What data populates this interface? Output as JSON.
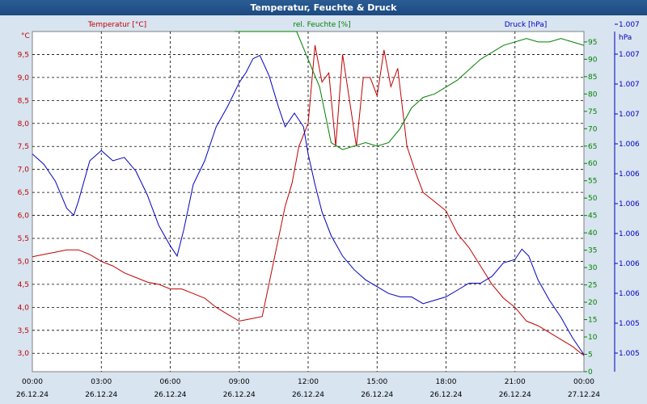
{
  "window": {
    "title": "Temperatur, Feuchte & Druck"
  },
  "colors": {
    "temperature": "#c00000",
    "humidity": "#008000",
    "pressure": "#0000c0",
    "grid": "#000000",
    "plot_bg": "#ffffff"
  },
  "chart_data": {
    "type": "line",
    "title": "Temperatur, Feuchte & Druck",
    "x_tick_labels": [
      {
        "time": "00:00",
        "date": "26.12.24"
      },
      {
        "time": "03:00",
        "date": "26.12.24"
      },
      {
        "time": "06:00",
        "date": "26.12.24"
      },
      {
        "time": "09:00",
        "date": "26.12.24"
      },
      {
        "time": "12:00",
        "date": "26.12.24"
      },
      {
        "time": "15:00",
        "date": "26.12.24"
      },
      {
        "time": "18:00",
        "date": "26.12.24"
      },
      {
        "time": "21:00",
        "date": "26.12.24"
      },
      {
        "time": "00:00",
        "date": "27.12.24"
      }
    ],
    "x_unit_hours": [
      0,
      24
    ],
    "axes": {
      "temperature": {
        "label": "Temperatur [°C]",
        "unit": "°C",
        "range": [
          2.6,
          10.0
        ],
        "tick_labels": [
          "3,0",
          "3,5",
          "4,0",
          "4,5",
          "5,0",
          "5,5",
          "6,0",
          "6,5",
          "7,0",
          "7,5",
          "8,0",
          "8,5",
          "9,0",
          "9,5"
        ]
      },
      "humidity": {
        "label": "rel. Feuchte [%]",
        "unit": "%",
        "range": [
          0,
          98
        ],
        "tick_labels": [
          "0",
          "5",
          "10",
          "15",
          "20",
          "25",
          "30",
          "35",
          "40",
          "45",
          "50",
          "55",
          "60",
          "65",
          "70",
          "75",
          "80",
          "85",
          "90",
          "95"
        ]
      },
      "pressure": {
        "label": "Druck [hPa]",
        "unit": "hPa",
        "tick_labels": [
          "1.005",
          "1.005",
          "1.006",
          "1.006",
          "1.006",
          "1.006",
          "1.006",
          "1.006",
          "1.007",
          "1.007",
          "1.007",
          "1.007",
          "1.007"
        ]
      }
    },
    "grid": true,
    "series": [
      {
        "name": "Temperatur [°C]",
        "axis": "temperature",
        "x": [
          0,
          0.5,
          1,
          1.5,
          2,
          2.5,
          3,
          3.5,
          4,
          4.5,
          5,
          5.5,
          6,
          6.5,
          7,
          7.5,
          8,
          8.5,
          9,
          9.5,
          10,
          10.5,
          11,
          11.3,
          11.6,
          12,
          12.3,
          12.6,
          12.9,
          13.2,
          13.5,
          13.8,
          14.1,
          14.4,
          14.7,
          15,
          15.3,
          15.6,
          15.9,
          16.3,
          16.7,
          17,
          17.5,
          18,
          18.5,
          19,
          19.5,
          20,
          20.5,
          21,
          21.5,
          22,
          22.5,
          23,
          23.5,
          24
        ],
        "y": [
          5.1,
          5.15,
          5.2,
          5.25,
          5.25,
          5.15,
          5.0,
          4.9,
          4.75,
          4.65,
          4.55,
          4.5,
          4.4,
          4.4,
          4.3,
          4.2,
          4.0,
          3.85,
          3.7,
          3.75,
          3.8,
          5.0,
          6.2,
          6.7,
          7.5,
          8.0,
          9.7,
          8.9,
          9.1,
          7.5,
          9.5,
          8.5,
          7.5,
          9.0,
          9.0,
          8.6,
          9.6,
          8.8,
          9.2,
          7.5,
          6.9,
          6.5,
          6.3,
          6.1,
          5.6,
          5.3,
          4.9,
          4.5,
          4.2,
          4.0,
          3.7,
          3.6,
          3.45,
          3.3,
          3.15,
          2.95
        ]
      },
      {
        "name": "rel. Feuchte [%]",
        "axis": "humidity",
        "x": [
          8.8,
          9.5,
          10,
          10.5,
          11,
          11.5,
          12,
          12.5,
          13,
          13.5,
          14,
          14.5,
          15,
          15.5,
          16,
          16.5,
          17,
          17.5,
          18,
          18.5,
          19,
          19.5,
          20,
          20.5,
          21,
          21.5,
          22,
          22.5,
          23,
          23.5,
          24
        ],
        "y": [
          98,
          98,
          98,
          98,
          98,
          98,
          90,
          82,
          66,
          64,
          65,
          66,
          65,
          66,
          70,
          76,
          79,
          80,
          82,
          84,
          87,
          90,
          92,
          94,
          95,
          96,
          95,
          95,
          96,
          95,
          94
        ]
      },
      {
        "name": "Druck [hPa]",
        "axis": "pressure",
        "x": [
          0,
          0.5,
          1,
          1.5,
          1.8,
          2,
          2.5,
          3,
          3.5,
          4,
          4.5,
          5,
          5.5,
          6,
          6.3,
          6.6,
          7,
          7.5,
          8,
          8.5,
          9,
          9.3,
          9.6,
          9.9,
          10.3,
          10.7,
          11,
          11.4,
          11.8,
          12,
          12.3,
          12.6,
          13,
          13.5,
          14,
          14.5,
          15,
          15.5,
          16,
          16.5,
          17,
          17.5,
          18,
          18.5,
          19,
          19.5,
          20,
          20.5,
          21,
          21.3,
          21.6,
          22,
          22.5,
          23,
          23.5,
          24
        ],
        "y": [
          0.64,
          0.61,
          0.56,
          0.48,
          0.46,
          0.5,
          0.62,
          0.65,
          0.62,
          0.63,
          0.59,
          0.52,
          0.43,
          0.37,
          0.34,
          0.42,
          0.55,
          0.62,
          0.72,
          0.78,
          0.85,
          0.88,
          0.92,
          0.93,
          0.87,
          0.78,
          0.72,
          0.76,
          0.72,
          0.64,
          0.55,
          0.47,
          0.4,
          0.34,
          0.3,
          0.27,
          0.25,
          0.23,
          0.22,
          0.22,
          0.2,
          0.21,
          0.22,
          0.24,
          0.26,
          0.26,
          0.28,
          0.32,
          0.33,
          0.36,
          0.34,
          0.27,
          0.21,
          0.16,
          0.1,
          0.05
        ]
      }
    ]
  }
}
